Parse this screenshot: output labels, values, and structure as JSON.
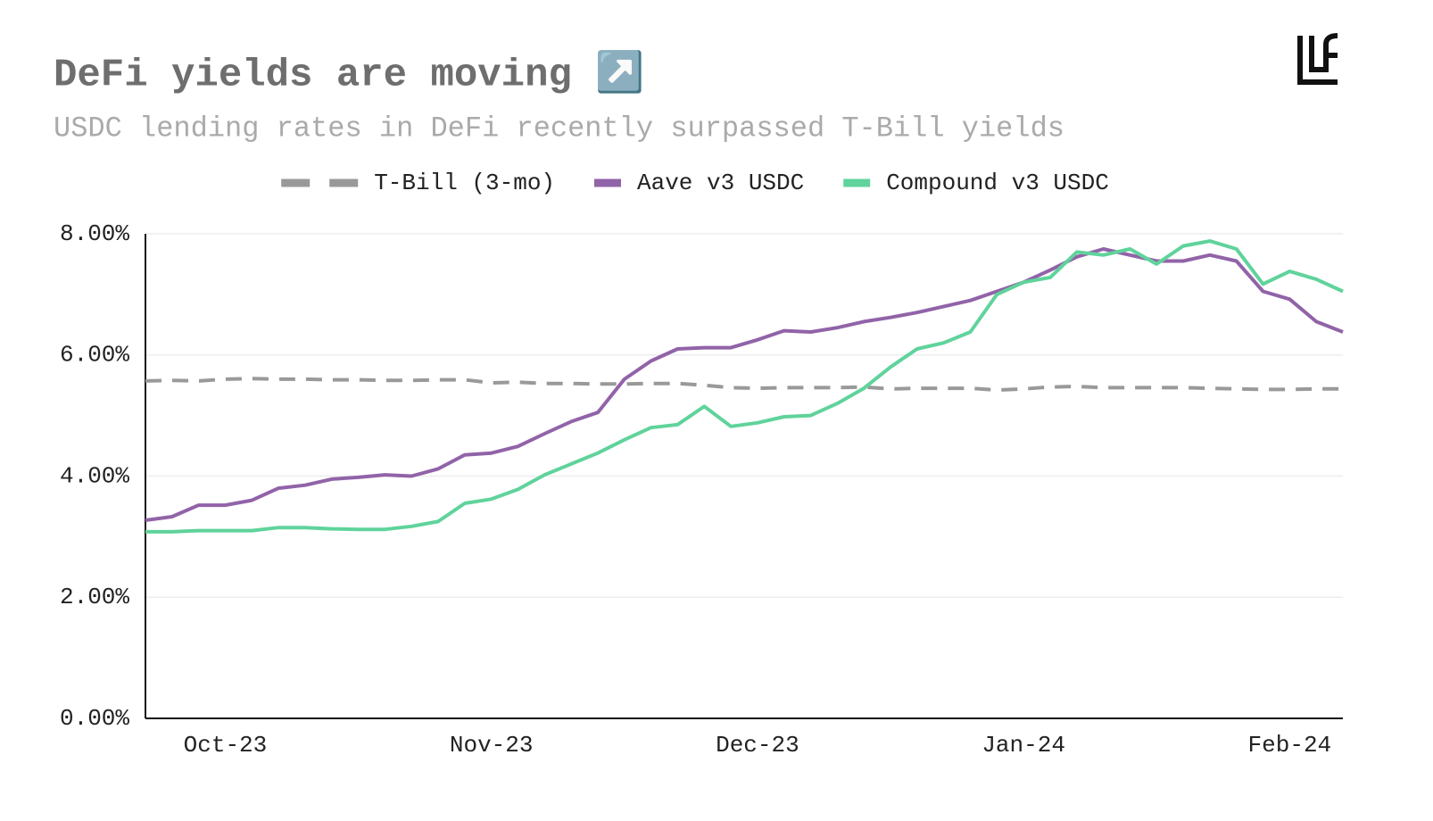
{
  "chart_data": {
    "type": "line",
    "title": "DeFi yields are moving ↗️",
    "subtitle": "USDC lending rates in DeFi recently surpassed T-Bill yields",
    "categories": [
      null,
      null,
      null,
      "Oct-23",
      null,
      null,
      null,
      null,
      null,
      null,
      null,
      null,
      null,
      "Nov-23",
      null,
      null,
      null,
      null,
      null,
      null,
      null,
      null,
      null,
      "Dec-23",
      null,
      null,
      null,
      null,
      null,
      null,
      null,
      null,
      null,
      "Jan-24",
      null,
      null,
      null,
      null,
      null,
      null,
      null,
      null,
      null,
      "Feb-24",
      null,
      null
    ],
    "series": [
      {
        "name": "T-Bill (3-mo)",
        "color": "#999999",
        "dashed": true,
        "values": [
          5.57,
          5.58,
          5.57,
          5.6,
          5.61,
          5.6,
          5.6,
          5.59,
          5.59,
          5.58,
          5.58,
          5.59,
          5.59,
          5.54,
          5.55,
          5.53,
          5.53,
          5.52,
          5.52,
          5.53,
          5.53,
          5.5,
          5.46,
          5.45,
          5.46,
          5.46,
          5.46,
          5.47,
          5.44,
          5.45,
          5.45,
          5.45,
          5.42,
          5.44,
          5.47,
          5.48,
          5.46,
          5.46,
          5.46,
          5.46,
          5.45,
          5.44,
          5.43,
          5.43,
          5.44,
          5.44
        ]
      },
      {
        "name": "Aave v3 USDC",
        "color": "#9163a8",
        "dashed": false,
        "values": [
          3.27,
          3.33,
          3.52,
          3.52,
          3.6,
          3.8,
          3.85,
          3.95,
          3.98,
          4.02,
          4.0,
          4.12,
          4.35,
          4.38,
          4.49,
          4.7,
          4.9,
          5.05,
          5.6,
          5.9,
          6.1,
          6.12,
          6.12,
          6.25,
          6.4,
          6.38,
          6.45,
          6.55,
          6.62,
          6.7,
          6.8,
          6.9,
          7.05,
          7.2,
          7.4,
          7.62,
          7.75,
          7.65,
          7.55,
          7.55,
          7.65,
          7.55,
          7.05,
          6.92,
          6.55,
          6.38
        ]
      },
      {
        "name": "Compound v3 USDC",
        "color": "#5fd39b",
        "dashed": false,
        "values": [
          3.08,
          3.08,
          3.1,
          3.1,
          3.1,
          3.15,
          3.15,
          3.13,
          3.12,
          3.12,
          3.17,
          3.25,
          3.55,
          3.62,
          3.78,
          4.02,
          4.2,
          4.38,
          4.6,
          4.8,
          4.85,
          5.15,
          4.82,
          4.88,
          4.98,
          5.0,
          5.2,
          5.45,
          5.8,
          6.1,
          6.2,
          6.38,
          7.0,
          7.2,
          7.28,
          7.7,
          7.65,
          7.75,
          7.5,
          7.8,
          7.88,
          7.75,
          7.17,
          7.38,
          7.25,
          7.05
        ]
      }
    ],
    "ylim": [
      0,
      8
    ],
    "yticks": [
      {
        "value": 0,
        "label": "0.00%"
      },
      {
        "value": 2,
        "label": "2.00%"
      },
      {
        "value": 4,
        "label": "4.00%"
      },
      {
        "value": 6,
        "label": "6.00%"
      },
      {
        "value": 8,
        "label": "8.00%"
      }
    ],
    "grid": true,
    "legend": "top"
  }
}
